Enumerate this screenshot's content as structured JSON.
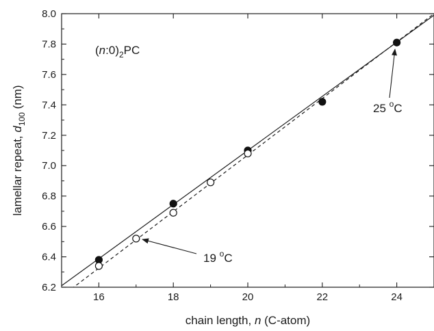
{
  "chart_data": {
    "type": "scatter",
    "xlabel": {
      "pre": "chain length, ",
      "italic": "n",
      "post": " (C-atom)"
    },
    "ylabel": {
      "pre": "lamellar repeat, ",
      "italic": "d",
      "sub": "100",
      "post": " (nm)"
    },
    "xlim": [
      15,
      25
    ],
    "ylim": [
      6.2,
      8.0
    ],
    "xticks": [
      16,
      18,
      20,
      22,
      24
    ],
    "yticks": [
      6.2,
      6.4,
      6.6,
      6.8,
      7.0,
      7.2,
      7.4,
      7.6,
      7.8,
      8.0
    ],
    "xtick_labels": [
      "16",
      "18",
      "20",
      "22",
      "24"
    ],
    "ytick_labels": [
      "6.2",
      "6.4",
      "6.6",
      "6.8",
      "7.0",
      "7.2",
      "7.4",
      "7.6",
      "7.8",
      "8.0"
    ],
    "grid": false,
    "series": [
      {
        "label": "25 °C",
        "marker": "filled-circle",
        "x": [
          16,
          18,
          20,
          22,
          24
        ],
        "y": [
          6.38,
          6.75,
          7.1,
          7.42,
          7.81
        ],
        "fit": {
          "style": "solid",
          "y_at_15": 6.21,
          "y_at_25": 7.99
        }
      },
      {
        "label": "19 °C",
        "marker": "open-circle",
        "x": [
          16,
          17,
          18,
          19,
          20
        ],
        "y": [
          6.34,
          6.52,
          6.69,
          6.89,
          7.08
        ],
        "fit": {
          "style": "dashed",
          "y_at_15": 6.14,
          "y_at_25": 8.0
        }
      }
    ],
    "annotations": {
      "title": {
        "open": "(",
        "italic": "n",
        "rest": ":0)",
        "sub": "2",
        "tail": "PC"
      },
      "label_25": {
        "value": "25 ",
        "degree": "o",
        "unit": "C",
        "point_x": 24,
        "point_y": 7.81
      },
      "label_19": {
        "value": "19 ",
        "degree": "o",
        "unit": "C",
        "point_x": 17,
        "point_y": 6.52
      }
    }
  }
}
